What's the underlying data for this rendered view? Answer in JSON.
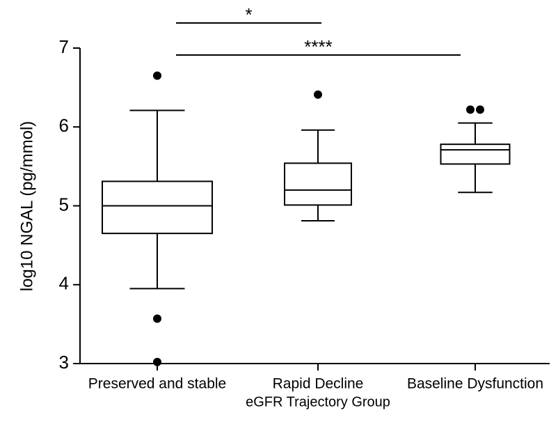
{
  "chart_data": {
    "type": "box",
    "categories": [
      "Preserved and stable",
      "Rapid Decline",
      "Baseline Dysfunction"
    ],
    "boxes": [
      {
        "whisker_low": 3.95,
        "q1": 4.65,
        "median": 5.0,
        "q3": 5.31,
        "whisker_high": 6.21,
        "outliers": [
          6.65,
          3.57,
          3.02
        ]
      },
      {
        "whisker_low": 4.81,
        "q1": 5.01,
        "median": 5.2,
        "q3": 5.54,
        "whisker_high": 5.96,
        "outliers": [
          6.41
        ]
      },
      {
        "whisker_low": 5.17,
        "q1": 5.53,
        "median": 5.71,
        "q3": 5.78,
        "whisker_high": 6.05,
        "outliers": [
          6.22,
          6.22
        ]
      }
    ],
    "ylim": [
      3,
      7
    ],
    "yticks": [
      3,
      4,
      5,
      6,
      7
    ],
    "y_label": "log10 NGAL  (pg/mmol)",
    "x_label": "eGFR Trajectory Group",
    "annotations": [
      {
        "text": "*"
      },
      {
        "text": "****"
      }
    ],
    "color": "#000000"
  }
}
